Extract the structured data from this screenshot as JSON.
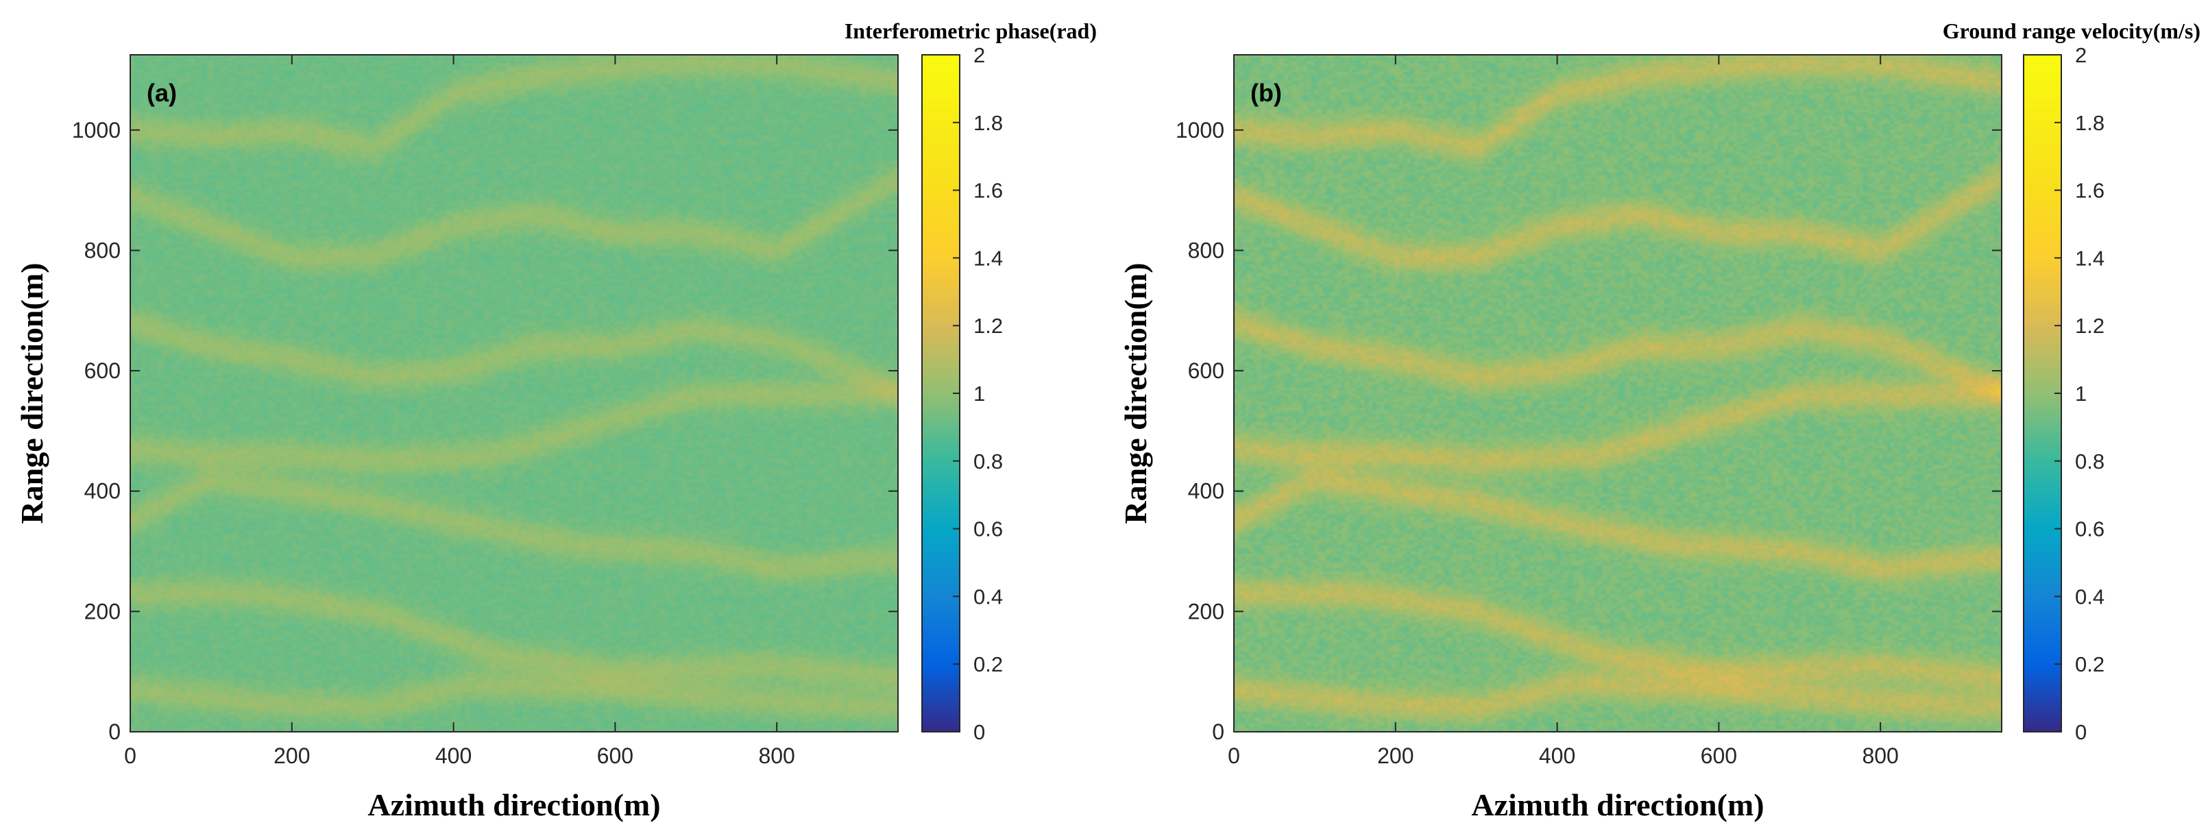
{
  "chart_data": [
    {
      "type": "heatmap",
      "panel_label": "(a)",
      "colorbar_title": "Interferometric phase(rad)",
      "xlabel": "Azimuth direction(m)",
      "ylabel": "Range direction(m)",
      "xlim": [
        0,
        950
      ],
      "ylim": [
        0,
        1125
      ],
      "xticks": [
        0,
        200,
        400,
        600,
        800
      ],
      "yticks": [
        0,
        200,
        400,
        600,
        800,
        1000
      ],
      "clim": [
        0,
        2
      ],
      "cticks": [
        "0",
        "0.2",
        "0.4",
        "0.6",
        "0.8",
        "1",
        "1.2",
        "1.4",
        "1.6",
        "1.8",
        "2"
      ],
      "background_value": 0.92,
      "crest_value": 1.02,
      "noise": 0.03,
      "colormap": "parula",
      "wave_crests_y": [
        [
          [
            0,
            70
          ],
          [
            150,
            50
          ],
          [
            300,
            40
          ],
          [
            420,
            80
          ],
          [
            600,
            70
          ],
          [
            800,
            50
          ],
          [
            950,
            40
          ]
        ],
        [
          [
            0,
            230
          ],
          [
            150,
            230
          ],
          [
            300,
            200
          ],
          [
            450,
            130
          ],
          [
            600,
            100
          ],
          [
            800,
            110
          ],
          [
            950,
            90
          ]
        ],
        [
          [
            0,
            350
          ],
          [
            100,
            420
          ],
          [
            200,
            400
          ],
          [
            300,
            380
          ],
          [
            400,
            350
          ],
          [
            550,
            310
          ],
          [
            700,
            300
          ],
          [
            800,
            270
          ],
          [
            950,
            290
          ]
        ],
        [
          [
            0,
            470
          ],
          [
            100,
            460
          ],
          [
            200,
            460
          ],
          [
            300,
            450
          ],
          [
            450,
            460
          ],
          [
            600,
            520
          ],
          [
            700,
            560
          ],
          [
            800,
            560
          ],
          [
            950,
            560
          ]
        ],
        [
          [
            0,
            680
          ],
          [
            100,
            640
          ],
          [
            200,
            620
          ],
          [
            300,
            590
          ],
          [
            400,
            600
          ],
          [
            500,
            640
          ],
          [
            600,
            640
          ],
          [
            700,
            670
          ],
          [
            800,
            650
          ],
          [
            950,
            570
          ]
        ],
        [
          [
            0,
            890
          ],
          [
            100,
            840
          ],
          [
            200,
            790
          ],
          [
            300,
            790
          ],
          [
            400,
            840
          ],
          [
            500,
            860
          ],
          [
            600,
            830
          ],
          [
            700,
            830
          ],
          [
            800,
            800
          ],
          [
            950,
            920
          ]
        ],
        [
          [
            0,
            1000
          ],
          [
            100,
            990
          ],
          [
            200,
            1000
          ],
          [
            300,
            970
          ],
          [
            400,
            1060
          ],
          [
            500,
            1090
          ],
          [
            650,
            1110
          ],
          [
            800,
            1110
          ],
          [
            950,
            1080
          ]
        ]
      ]
    },
    {
      "type": "heatmap",
      "panel_label": "(b)",
      "colorbar_title": "Ground range velocity(m/s)",
      "xlabel": "Azimuth direction(m)",
      "ylabel": "Range direction(m)",
      "xlim": [
        0,
        950
      ],
      "ylim": [
        0,
        1125
      ],
      "xticks": [
        0,
        200,
        400,
        600,
        800
      ],
      "yticks": [
        0,
        200,
        400,
        600,
        800,
        1000
      ],
      "clim": [
        0,
        2
      ],
      "cticks": [
        "0",
        "0.2",
        "0.4",
        "0.6",
        "0.8",
        "1",
        "1.2",
        "1.4",
        "1.6",
        "1.8",
        "2"
      ],
      "background_value": 0.95,
      "crest_value": 1.12,
      "noise": 0.05,
      "colormap": "parula",
      "wave_crests_y": [
        [
          [
            0,
            70
          ],
          [
            150,
            50
          ],
          [
            300,
            40
          ],
          [
            420,
            80
          ],
          [
            600,
            70
          ],
          [
            800,
            50
          ],
          [
            950,
            40
          ]
        ],
        [
          [
            0,
            230
          ],
          [
            150,
            230
          ],
          [
            300,
            200
          ],
          [
            450,
            130
          ],
          [
            600,
            100
          ],
          [
            800,
            110
          ],
          [
            950,
            90
          ]
        ],
        [
          [
            0,
            350
          ],
          [
            100,
            420
          ],
          [
            200,
            400
          ],
          [
            300,
            380
          ],
          [
            400,
            350
          ],
          [
            550,
            310
          ],
          [
            700,
            300
          ],
          [
            800,
            270
          ],
          [
            950,
            290
          ]
        ],
        [
          [
            0,
            470
          ],
          [
            100,
            460
          ],
          [
            200,
            460
          ],
          [
            300,
            450
          ],
          [
            450,
            460
          ],
          [
            600,
            520
          ],
          [
            700,
            560
          ],
          [
            800,
            560
          ],
          [
            950,
            560
          ]
        ],
        [
          [
            0,
            680
          ],
          [
            100,
            640
          ],
          [
            200,
            620
          ],
          [
            300,
            590
          ],
          [
            400,
            600
          ],
          [
            500,
            640
          ],
          [
            600,
            640
          ],
          [
            700,
            670
          ],
          [
            800,
            650
          ],
          [
            950,
            570
          ]
        ],
        [
          [
            0,
            890
          ],
          [
            100,
            840
          ],
          [
            200,
            790
          ],
          [
            300,
            790
          ],
          [
            400,
            840
          ],
          [
            500,
            860
          ],
          [
            600,
            830
          ],
          [
            700,
            830
          ],
          [
            800,
            800
          ],
          [
            950,
            920
          ]
        ],
        [
          [
            0,
            1000
          ],
          [
            100,
            990
          ],
          [
            200,
            1000
          ],
          [
            300,
            970
          ],
          [
            400,
            1060
          ],
          [
            500,
            1090
          ],
          [
            650,
            1110
          ],
          [
            800,
            1110
          ],
          [
            950,
            1080
          ]
        ]
      ]
    }
  ]
}
